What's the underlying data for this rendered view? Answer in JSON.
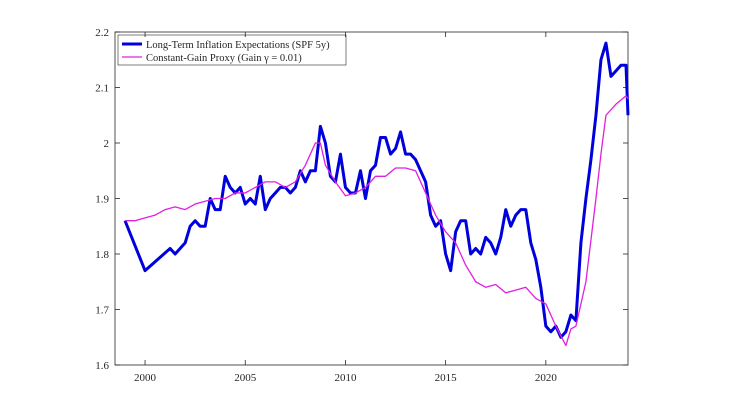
{
  "chart_data": {
    "type": "line",
    "xlim": [
      1998.5,
      2024.1
    ],
    "xticks": [
      2000,
      2005,
      2010,
      2015,
      2020
    ],
    "ylim": [
      1.6,
      2.2
    ],
    "yticks": [
      1.6,
      1.7,
      1.8,
      1.9,
      2,
      2.1,
      2.2
    ],
    "legend": "upper-left",
    "series": [
      {
        "name": "Long-Term Inflation Expectations (SPF 5y)",
        "color": "#0000dd",
        "width": 3,
        "x": [
          1999,
          2000,
          2001.25,
          2001.5,
          2002,
          2002.25,
          2002.5,
          2002.75,
          2003,
          2003.25,
          2003.5,
          2003.75,
          2004,
          2004.25,
          2004.5,
          2004.75,
          2005,
          2005.25,
          2005.5,
          2005.75,
          2006,
          2006.25,
          2006.5,
          2006.75,
          2007,
          2007.25,
          2007.5,
          2007.75,
          2008,
          2008.25,
          2008.5,
          2008.75,
          2009,
          2009.25,
          2009.5,
          2009.75,
          2010,
          2010.25,
          2010.5,
          2010.75,
          2011,
          2011.25,
          2011.5,
          2011.75,
          2012,
          2012.25,
          2012.5,
          2012.75,
          2013,
          2013.25,
          2013.5,
          2013.75,
          2014,
          2014.25,
          2014.5,
          2014.75,
          2015,
          2015.25,
          2015.5,
          2015.75,
          2016,
          2016.25,
          2016.5,
          2016.75,
          2017,
          2017.25,
          2017.5,
          2017.75,
          2018,
          2018.25,
          2018.5,
          2018.75,
          2019,
          2019.25,
          2019.5,
          2019.75,
          2020,
          2020.25,
          2020.5,
          2020.75,
          2021,
          2021.25,
          2021.5,
          2021.75,
          2022,
          2022.25,
          2022.5,
          2022.75,
          2023,
          2023.25,
          2023.5,
          2023.75,
          2024,
          2024.1
        ],
        "values": [
          1.86,
          1.77,
          1.81,
          1.8,
          1.82,
          1.85,
          1.86,
          1.85,
          1.85,
          1.9,
          1.88,
          1.88,
          1.94,
          1.92,
          1.91,
          1.92,
          1.89,
          1.9,
          1.89,
          1.94,
          1.88,
          1.9,
          1.91,
          1.92,
          1.92,
          1.91,
          1.92,
          1.95,
          1.93,
          1.95,
          1.95,
          2.03,
          2.0,
          1.94,
          1.93,
          1.98,
          1.92,
          1.91,
          1.91,
          1.95,
          1.9,
          1.95,
          1.96,
          2.01,
          2.01,
          1.98,
          1.99,
          2.02,
          1.98,
          1.98,
          1.97,
          1.95,
          1.93,
          1.87,
          1.85,
          1.86,
          1.8,
          1.77,
          1.84,
          1.86,
          1.86,
          1.8,
          1.81,
          1.8,
          1.83,
          1.82,
          1.8,
          1.83,
          1.88,
          1.85,
          1.87,
          1.88,
          1.88,
          1.82,
          1.79,
          1.74,
          1.67,
          1.66,
          1.67,
          1.65,
          1.66,
          1.69,
          1.68,
          1.82,
          1.9,
          1.97,
          2.05,
          2.15,
          2.18,
          2.12,
          2.13,
          2.14,
          2.14,
          2.05
        ]
      },
      {
        "name": "Constant-Gain Proxy (Gain γ = 0.01)",
        "color": "#e020e0",
        "width": 1.3,
        "x": [
          1999,
          1999.5,
          2000,
          2000.5,
          2001,
          2001.5,
          2002,
          2002.5,
          2003,
          2003.5,
          2004,
          2004.5,
          2005,
          2005.5,
          2006,
          2006.5,
          2007,
          2007.5,
          2008,
          2008.5,
          2008.75,
          2009,
          2009.5,
          2010,
          2010.5,
          2011,
          2011.5,
          2012,
          2012.5,
          2013,
          2013.5,
          2014,
          2014.5,
          2015,
          2015.5,
          2016,
          2016.5,
          2017,
          2017.5,
          2018,
          2018.5,
          2019,
          2019.5,
          2020,
          2020.5,
          2021,
          2021.25,
          2021.5,
          2022,
          2022.5,
          2022.75,
          2023,
          2023.5,
          2024,
          2024.1
        ],
        "values": [
          1.86,
          1.86,
          1.865,
          1.87,
          1.88,
          1.885,
          1.88,
          1.89,
          1.895,
          1.9,
          1.9,
          1.91,
          1.91,
          1.92,
          1.93,
          1.93,
          1.92,
          1.93,
          1.96,
          2.0,
          2.0,
          1.96,
          1.93,
          1.905,
          1.91,
          1.92,
          1.94,
          1.94,
          1.955,
          1.955,
          1.95,
          1.91,
          1.87,
          1.84,
          1.82,
          1.78,
          1.75,
          1.74,
          1.745,
          1.73,
          1.735,
          1.74,
          1.72,
          1.71,
          1.67,
          1.635,
          1.665,
          1.67,
          1.75,
          1.9,
          1.98,
          2.05,
          2.07,
          2.085,
          2.08
        ]
      }
    ]
  }
}
